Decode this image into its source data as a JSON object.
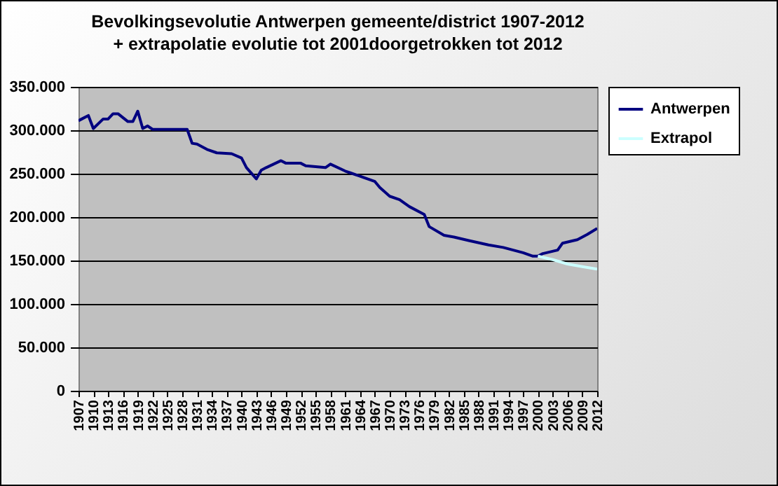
{
  "chart_data": {
    "type": "line",
    "title": "Bevolkingsevolutie Antwerpen gemeente/district 1907-2012\n+ extrapolatie evolutie tot 2001doorgetrokken tot 2012",
    "series": [
      {
        "name": "Antwerpen",
        "color": "#000080",
        "x": [
          1907,
          1908,
          1909,
          1910,
          1912,
          1913,
          1914,
          1915,
          1917,
          1918,
          1919,
          1920,
          1921,
          1922,
          1929,
          1930,
          1931,
          1933,
          1935,
          1938,
          1940,
          1941,
          1943,
          1944,
          1945,
          1948,
          1949,
          1952,
          1953,
          1957,
          1958,
          1961,
          1962,
          1964,
          1966,
          1967,
          1968,
          1970,
          1972,
          1974,
          1977,
          1978,
          1981,
          1983,
          1986,
          1990,
          1993,
          1997,
          1999,
          2000,
          2001,
          2004,
          2005,
          2008,
          2010,
          2012
        ],
        "values": [
          311000,
          314000,
          317000,
          302000,
          313000,
          313000,
          319000,
          319000,
          310000,
          310000,
          322000,
          302000,
          305000,
          301000,
          301000,
          285000,
          284000,
          278000,
          274000,
          273000,
          268000,
          257000,
          244000,
          254000,
          257000,
          265000,
          262000,
          262000,
          259000,
          257000,
          261000,
          253000,
          251000,
          247000,
          243000,
          241000,
          234000,
          224000,
          220000,
          212000,
          203000,
          189000,
          179000,
          177000,
          173000,
          168000,
          165000,
          159000,
          155000,
          155000,
          158000,
          162000,
          170000,
          174000,
          180000,
          187000
        ]
      },
      {
        "name": "Extrapol",
        "color": "#ccffff",
        "x": [
          2000,
          2003,
          2006,
          2009,
          2012
        ],
        "values": [
          155000,
          151000,
          146000,
          143000,
          140000
        ]
      }
    ],
    "xlim": [
      1907,
      2012
    ],
    "xticks": [
      1907,
      1910,
      1913,
      1916,
      1919,
      1922,
      1925,
      1928,
      1931,
      1934,
      1937,
      1940,
      1943,
      1946,
      1949,
      1952,
      1955,
      1958,
      1961,
      1964,
      1967,
      1970,
      1973,
      1976,
      1979,
      1982,
      1985,
      1988,
      1991,
      1994,
      1997,
      2000,
      2003,
      2006,
      2009,
      2012
    ],
    "ylim": [
      0,
      350000
    ],
    "yticks": [
      0,
      {
        "value": 50000,
        "label": "50.000"
      },
      {
        "value": 100000,
        "label": "100.000"
      },
      {
        "value": 150000,
        "label": "150.000"
      },
      {
        "value": 200000,
        "label": "200.000"
      },
      {
        "value": 250000,
        "label": "250.000"
      },
      {
        "value": 300000,
        "label": "300.000"
      },
      {
        "value": 350000,
        "label": "350.000"
      }
    ],
    "grid": "y",
    "legend": "right"
  }
}
